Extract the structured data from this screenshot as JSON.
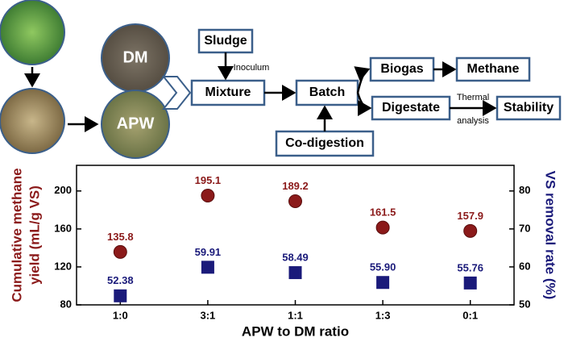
{
  "diagram": {
    "photos": [
      "DM",
      "APW"
    ],
    "nodes": [
      "Sludge",
      "Mixture",
      "Batch",
      "Co-digestion",
      "Biogas",
      "Methane",
      "Digestate",
      "Stability"
    ],
    "edge_labels": [
      "Inoculum",
      "Thermal",
      "analysis"
    ]
  },
  "chart_data": {
    "type": "scatter",
    "categories": [
      "1:0",
      "3:1",
      "1:1",
      "1:3",
      "0:1"
    ],
    "xlabel": "APW to DM ratio",
    "ylabel": [
      "Cumulative methane",
      "yield (mL/g VS)"
    ],
    "y2label": "VS removal rate (%)",
    "ylim": [
      80,
      227
    ],
    "yticks": [
      80,
      120,
      160,
      200
    ],
    "y2lim": [
      50,
      86.75
    ],
    "y2ticks": [
      50,
      60,
      70,
      80
    ],
    "series": [
      {
        "color": "#8b1a1a",
        "marker": "circle",
        "values": [
          135.8,
          195.1,
          189.2,
          161.5,
          157.9
        ]
      },
      {
        "color": "#1a1a7a",
        "marker": "square",
        "axis": "y2",
        "values": [
          52.38,
          59.91,
          58.49,
          55.9,
          55.76
        ],
        "value_labels": [
          "52.38",
          "59.91",
          "58.49",
          "55.90",
          "55.76"
        ]
      }
    ]
  }
}
